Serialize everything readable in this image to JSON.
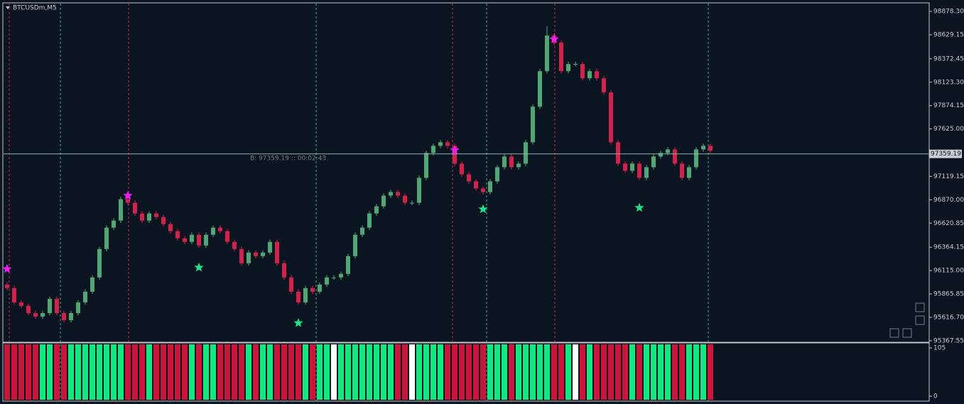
{
  "chart_data": {
    "type": "candlestick",
    "title": "BTCUSDm,M5",
    "open": [
      95966,
      95928,
      95776,
      95738,
      95662,
      95624,
      95662,
      95814,
      95662,
      95587,
      95662,
      95776,
      95890,
      96042,
      96345,
      96573,
      96648,
      96876,
      96838,
      96724,
      96648,
      96724,
      96686,
      96610,
      96535,
      96459,
      96421,
      96497,
      96383,
      96497,
      96573,
      96535,
      96421,
      96345,
      96193,
      96307,
      96269,
      96307,
      96421,
      96193,
      96042,
      95890,
      95776,
      95928,
      95890,
      95966,
      96042,
      96042,
      96080,
      96269,
      96497,
      96573,
      96724,
      96800,
      96914,
      96952,
      96914,
      96838,
      96838,
      97104,
      97369,
      97445,
      97483,
      97445,
      97255,
      97141,
      97066,
      96990,
      96952,
      97066,
      97217,
      97331,
      97217,
      97255,
      97483,
      97862,
      98241,
      98620,
      98545,
      98241,
      98317,
      98317,
      98165,
      98241,
      98165,
      98014,
      97483,
      97255,
      97179,
      97255,
      97104,
      97217,
      97331,
      97369,
      97407,
      97255,
      97104,
      97217,
      97407,
      97445
    ],
    "high": [
      95991,
      95953,
      95801,
      95763,
      95687,
      95687,
      95839,
      95839,
      95687,
      95687,
      95801,
      95915,
      96067,
      96370,
      96598,
      96673,
      96901,
      96901,
      96863,
      96749,
      96749,
      96749,
      96711,
      96635,
      96560,
      96484,
      96522,
      96522,
      96522,
      96598,
      96598,
      96560,
      96446,
      96370,
      96332,
      96332,
      96332,
      96446,
      96446,
      96218,
      96067,
      95915,
      95953,
      95953,
      95991,
      96067,
      96067,
      96105,
      96294,
      96522,
      96598,
      96749,
      96825,
      96939,
      96977,
      96977,
      96939,
      96863,
      97129,
      97394,
      97470,
      97508,
      97508,
      97470,
      97280,
      97166,
      97091,
      97015,
      97091,
      97242,
      97356,
      97356,
      97280,
      97508,
      97887,
      98266,
      98720,
      98645,
      98570,
      98342,
      98342,
      98342,
      98266,
      98266,
      98190,
      98039,
      97508,
      97280,
      97280,
      97280,
      97242,
      97356,
      97394,
      97432,
      97432,
      97280,
      97242,
      97432,
      97470,
      97470
    ],
    "low": [
      95903,
      95751,
      95713,
      95637,
      95599,
      95599,
      95637,
      95637,
      95562,
      95562,
      95637,
      95751,
      95865,
      96017,
      96320,
      96548,
      96623,
      96813,
      96699,
      96623,
      96623,
      96661,
      96585,
      96510,
      96434,
      96396,
      96396,
      96358,
      96358,
      96472,
      96510,
      96396,
      96320,
      96168,
      96168,
      96244,
      96244,
      96282,
      96168,
      96017,
      95865,
      95751,
      95751,
      95865,
      95865,
      95941,
      96017,
      96017,
      96055,
      96244,
      96472,
      96548,
      96699,
      96775,
      96889,
      96889,
      96813,
      96813,
      96813,
      97079,
      97344,
      97420,
      97420,
      97230,
      97116,
      97041,
      96965,
      96927,
      96927,
      97041,
      97192,
      97192,
      97192,
      97230,
      97458,
      97837,
      98216,
      98520,
      98216,
      98216,
      98292,
      98140,
      98140,
      98140,
      97989,
      97458,
      97230,
      97154,
      97154,
      97079,
      97079,
      97192,
      97306,
      97344,
      97230,
      97079,
      97079,
      97192,
      97382,
      97367
    ],
    "close": [
      95928,
      95776,
      95738,
      95662,
      95624,
      95662,
      95814,
      95662,
      95587,
      95662,
      95776,
      95890,
      96042,
      96345,
      96573,
      96648,
      96876,
      96838,
      96724,
      96648,
      96724,
      96686,
      96610,
      96535,
      96459,
      96421,
      96497,
      96383,
      96497,
      96573,
      96535,
      96421,
      96345,
      96193,
      96307,
      96269,
      96307,
      96421,
      96193,
      96042,
      95890,
      95776,
      95928,
      95890,
      95966,
      96042,
      96042,
      96080,
      96269,
      96497,
      96573,
      96724,
      96800,
      96914,
      96952,
      96914,
      96838,
      96838,
      97104,
      97369,
      97445,
      97483,
      97445,
      97255,
      97141,
      97066,
      96990,
      96952,
      97066,
      97217,
      97331,
      97217,
      97255,
      97483,
      97862,
      98241,
      98620,
      98545,
      98241,
      98317,
      98317,
      98165,
      98241,
      98165,
      98014,
      97483,
      97255,
      97179,
      97255,
      97104,
      97217,
      97331,
      97369,
      97407,
      97255,
      97104,
      97217,
      97407,
      97445,
      97392
    ],
    "up_color": "#4fa874",
    "down_color": "#d3214b",
    "markers": [
      {
        "x": 0,
        "y": 96132,
        "color": "#ff1aff"
      },
      {
        "x": 17,
        "y": 96914,
        "color": "#ff1aff"
      },
      {
        "x": 63,
        "y": 97399,
        "color": "#ff1aff"
      },
      {
        "x": 77,
        "y": 98582,
        "color": "#ff1aff"
      },
      {
        "x": 27,
        "y": 96148,
        "color": "#19e68c"
      },
      {
        "x": 41,
        "y": 95556,
        "color": "#19e68c"
      },
      {
        "x": 67,
        "y": 96770,
        "color": "#19e68c"
      },
      {
        "x": 89,
        "y": 96785,
        "color": "#19e68c"
      }
    ],
    "ylim": [
      95358.8,
      98961.7
    ],
    "yticks": [
      {
        "value": 98878.3,
        "label": "98878.30"
      },
      {
        "value": 98629.15,
        "label": "98629.15"
      },
      {
        "value": 98372.45,
        "label": "98372.45"
      },
      {
        "value": 98123.3,
        "label": "98123.30"
      },
      {
        "value": 97874.15,
        "label": "97874.15"
      },
      {
        "value": 97625,
        "label": "97625.00"
      },
      {
        "value": 97119.15,
        "label": "97119.15"
      },
      {
        "value": 96870,
        "label": "96870.00"
      },
      {
        "value": 96620.85,
        "label": "96620.85"
      },
      {
        "value": 96364.15,
        "label": "96364.15"
      },
      {
        "value": 96115,
        "label": "96115.00"
      },
      {
        "value": 95865.85,
        "label": "95865.85"
      },
      {
        "value": 95616.7,
        "label": "95616.70"
      },
      {
        "value": 95367.55,
        "label": "95367.55"
      }
    ],
    "price_line": 97359.19,
    "price_line_color": "#8fb3b0",
    "bid_label": "B: 97359.19 :: 00:02:43",
    "indicator": {
      "ylim": [
        0,
        105
      ],
      "yticks": [
        105,
        0
      ],
      "up_color": "#12e87f",
      "down_color": "#c8173a",
      "flat_color": "#ffffff"
    }
  }
}
